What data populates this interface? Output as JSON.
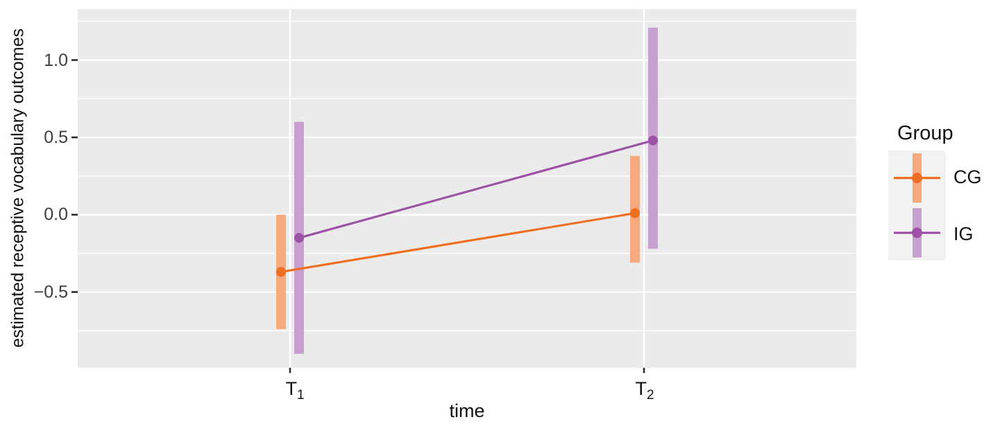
{
  "chart_data": {
    "type": "line",
    "title": "",
    "xlabel": "time",
    "ylabel": "estimated receptive vocabulary outcomes",
    "categories": [
      {
        "base": "T",
        "sub": "1"
      },
      {
        "base": "T",
        "sub": "2"
      }
    ],
    "x_positions": [
      0.2727,
      0.7273
    ],
    "series": [
      {
        "name": "CG",
        "color": "#EE6F22",
        "ci_fill": "#F5A97C",
        "values": [
          -0.37,
          0.01
        ],
        "ci_low": [
          -0.74,
          -0.31
        ],
        "ci_high": [
          0.0,
          0.38
        ]
      },
      {
        "name": "IG",
        "color": "#9C53A6",
        "ci_fill": "#C8A0D0",
        "values": [
          -0.15,
          0.48
        ],
        "ci_low": [
          -0.9,
          -0.22
        ],
        "ci_high": [
          0.6,
          1.21
        ]
      }
    ],
    "ylim": [
      -0.99,
      1.33
    ],
    "yticks_major": [
      1.0,
      0.5,
      0.0,
      -0.5
    ],
    "ytick_labels": [
      "1.0",
      "0.5",
      "0.0",
      "−0.5"
    ],
    "yticks_minor": [
      1.25,
      0.75,
      0.25,
      -0.25,
      -0.75
    ],
    "grid": "on",
    "legend": {
      "title": "Group",
      "position": "right",
      "entries": [
        "CG",
        "IG"
      ]
    },
    "colors": {
      "panel_bg": "#EBEBEB",
      "grid": "#FFFFFF",
      "legend_key_bg": "#F2F2F2",
      "tick": "#2B2B2B",
      "tick_label": "#3D3D3D",
      "axis_title": "#111111"
    }
  }
}
